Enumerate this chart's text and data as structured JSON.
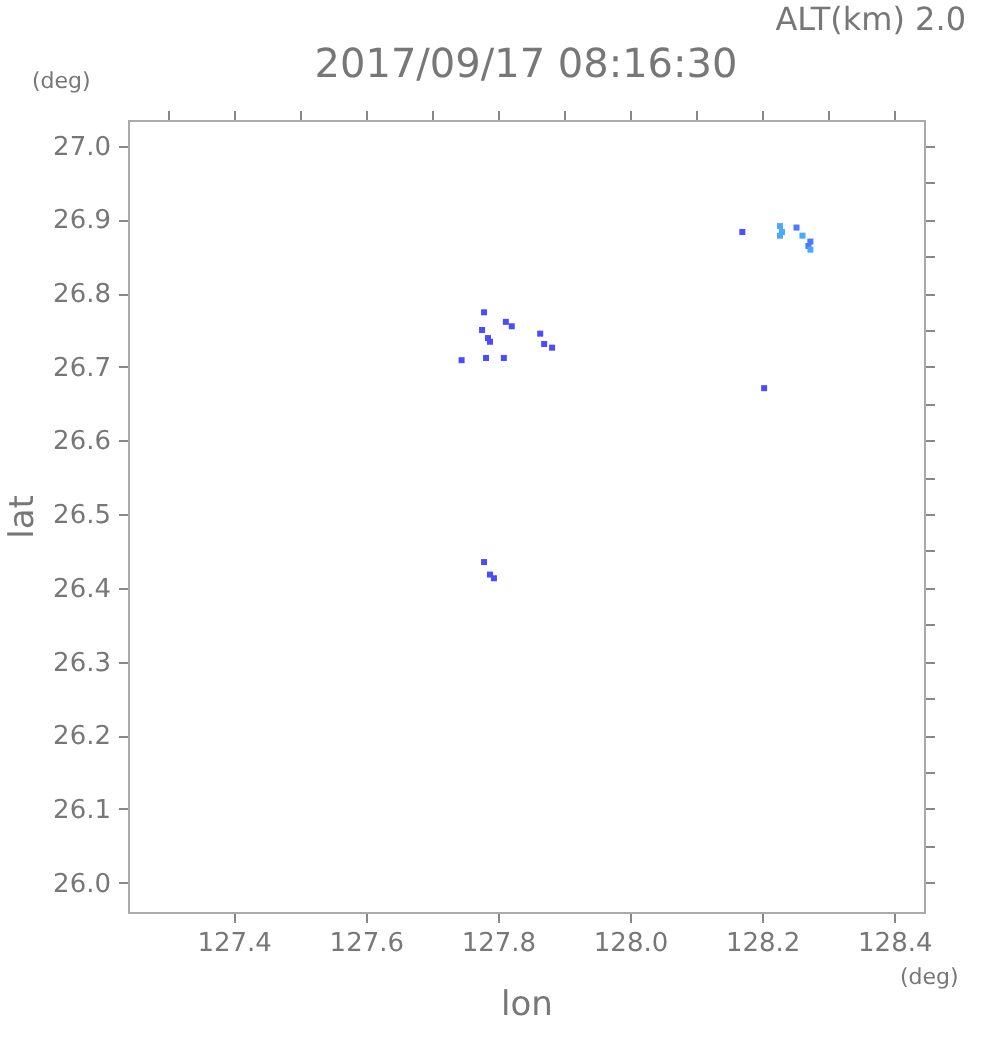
{
  "chart_data": {
    "type": "scatter",
    "title": "2017/09/17 08:16:30",
    "xlabel": "lon",
    "ylabel": "lat",
    "annotations": [
      "ALT(km) 2.0",
      "(deg)",
      "(deg)"
    ],
    "marker": "square",
    "grid": false,
    "xlim": [
      127.24,
      128.445
    ],
    "ylim": [
      25.96,
      27.035
    ],
    "xticks": [
      {
        "value": 127.3,
        "label": null
      },
      127.4,
      {
        "value": 127.5,
        "label": null
      },
      127.6,
      {
        "value": 127.7,
        "label": null
      },
      127.8,
      {
        "value": 127.9,
        "label": null
      },
      {
        "value": 128,
        "label": "128.0"
      },
      {
        "value": 128.1,
        "label": null
      },
      128.2,
      {
        "value": 128.3,
        "label": null
      },
      128.4
    ],
    "yticks": [
      {
        "value": 26,
        "label": "26.0"
      },
      {
        "value": 26.05,
        "label": null
      },
      26.1,
      {
        "value": 26.15,
        "label": null
      },
      26.2,
      {
        "value": 26.25,
        "label": null
      },
      26.3,
      {
        "value": 26.35,
        "label": null
      },
      26.4,
      {
        "value": 26.45,
        "label": null
      },
      26.5,
      {
        "value": 26.55,
        "label": null
      },
      26.6,
      {
        "value": 26.65,
        "label": null
      },
      26.7,
      {
        "value": 26.75,
        "label": null
      },
      26.8,
      {
        "value": 26.85,
        "label": null
      },
      26.9,
      {
        "value": 26.95,
        "label": null
      },
      {
        "value": 27,
        "label": "27.0"
      }
    ],
    "series": [
      {
        "color": "#4b4bff",
        "x": [
          128.17,
          128.203,
          127.779,
          127.812,
          127.821,
          127.776,
          127.785,
          127.788,
          127.864,
          127.87,
          127.882,
          127.782,
          127.809,
          127.745,
          127.779,
          127.788,
          127.794
        ],
        "values": [
          26.883,
          26.671,
          26.774,
          26.761,
          26.755,
          26.75,
          26.739,
          26.734,
          26.745,
          26.731,
          26.726,
          26.712,
          26.712,
          26.709,
          26.435,
          26.418,
          26.413
        ]
      },
      {
        "color": "#4a7aff",
        "x": [
          128.252,
          128.273,
          128.27
        ],
        "values": [
          26.889,
          26.87,
          26.864
        ]
      },
      {
        "color": "#4aa8ff",
        "x": [
          128.227,
          128.23,
          128.227,
          128.261,
          128.273
        ],
        "values": [
          26.891,
          26.883,
          26.878,
          26.878,
          26.859
        ]
      }
    ]
  }
}
